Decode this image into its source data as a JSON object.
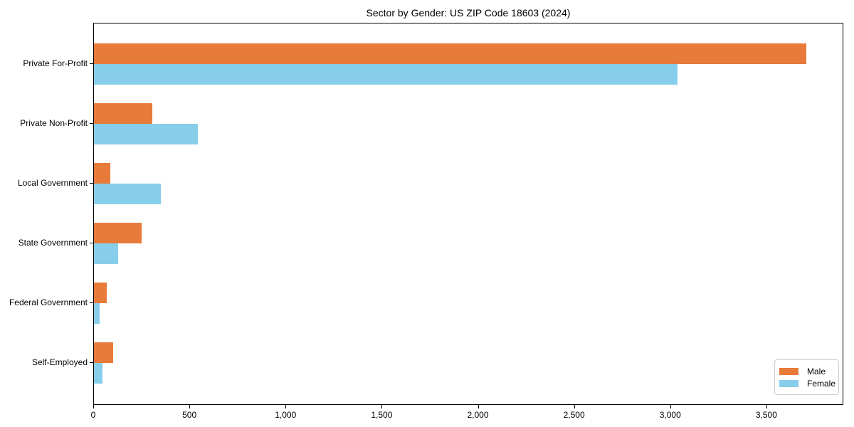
{
  "chart_data": {
    "type": "bar",
    "orientation": "horizontal",
    "title": "Sector by Gender: US ZIP Code 18603 (2024)",
    "categories": [
      "Private For-Profit",
      "Private Non-Profit",
      "Local Government",
      "State Government",
      "Federal Government",
      "Self-Employed"
    ],
    "series": [
      {
        "name": "Male",
        "color": "#e87a3a",
        "values": [
          3710,
          305,
          85,
          250,
          65,
          100
        ]
      },
      {
        "name": "Female",
        "color": "#87ceeb",
        "values": [
          3040,
          540,
          350,
          125,
          30,
          45
        ]
      }
    ],
    "xlabel": "",
    "ylabel": "",
    "xlim": [
      0,
      3900
    ],
    "xticks": [
      0,
      500,
      1000,
      1500,
      2000,
      2500,
      3000,
      3500
    ],
    "xtick_labels": [
      "0",
      "500",
      "1,000",
      "1,500",
      "2,000",
      "2,500",
      "3,000",
      "3,500"
    ],
    "grid": false,
    "legend_position": "lower right",
    "colors": {
      "spine": "#000000",
      "background": "#ffffff",
      "legend_border": "#cccccc"
    }
  }
}
